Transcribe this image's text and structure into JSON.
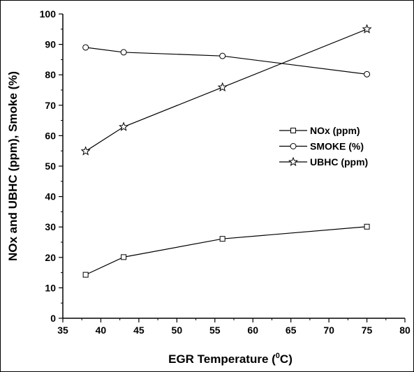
{
  "chart_data": {
    "type": "line",
    "xlabel": "EGR Temperature (",
    "xlabel_sup": "0",
    "xlabel_end": "C)",
    "ylabel": "NOx and UBHC (ppm), Smoke (%)",
    "xlim": [
      35,
      80
    ],
    "ylim": [
      0,
      100
    ],
    "x_ticks": [
      35,
      40,
      45,
      50,
      55,
      60,
      65,
      70,
      75,
      80
    ],
    "y_ticks": [
      0,
      10,
      20,
      30,
      40,
      50,
      60,
      70,
      80,
      90,
      100
    ],
    "x": [
      38,
      43,
      56,
      75
    ],
    "legend_position": "center-right",
    "grid": false,
    "series": [
      {
        "name": "NOx (ppm)",
        "marker": "square",
        "values": [
          14.3,
          20.1,
          26.1,
          30.1
        ]
      },
      {
        "name": "SMOKE (%)",
        "marker": "circle",
        "values": [
          89,
          87.4,
          86.2,
          80.2
        ]
      },
      {
        "name": "UBHC (ppm)",
        "marker": "star",
        "values": [
          54.9,
          62.9,
          75.9,
          95
        ]
      }
    ],
    "line_color": "#000000"
  }
}
